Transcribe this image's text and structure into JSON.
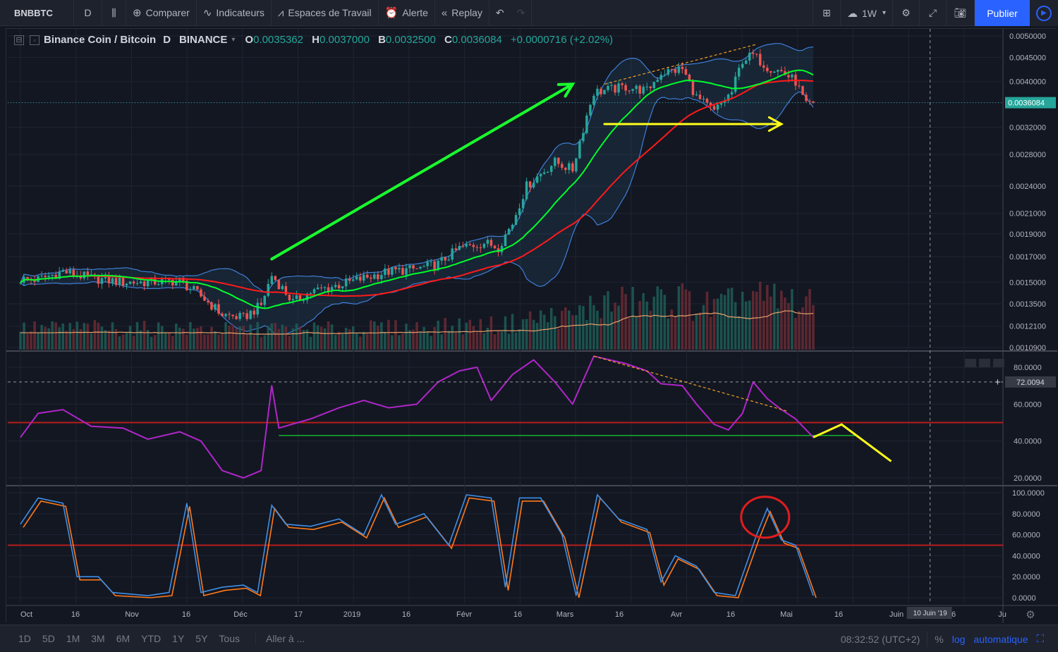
{
  "toolbar": {
    "symbol": "BNBBTC",
    "interval": "D",
    "compare": "Comparer",
    "indicators": "Indicateurs",
    "workspaces": "Espaces de Travail",
    "alert": "Alerte",
    "replay": "Replay",
    "layout_interval": "1W",
    "publish": "Publier"
  },
  "legend": {
    "symbol": "Binance Coin / Bitcoin",
    "interval": "D",
    "exchange": "BINANCE",
    "open_label": "O",
    "open": "0.0035362",
    "high_label": "H",
    "high": "0.0037000",
    "low_label": "B",
    "low": "0.0032500",
    "close_label": "C",
    "close": "0.0036084",
    "change": "+0.0000716 (+2.02%)"
  },
  "colors": {
    "background": "#131722",
    "up": "#26a69a",
    "down": "#ef5350",
    "sma_fast": "#00ff2a",
    "sma_slow": "#ff1a1a",
    "bollinger": "#3f7fd6",
    "rsi": "#b026c9",
    "stoch_k": "#3f8fe6",
    "stoch_d": "#ff7a1a",
    "drawing_green": "#19ff2e",
    "drawing_yellow": "#ffff1a",
    "accent": "#2962ff"
  },
  "price_axis": {
    "ticks": [
      "0.0050000",
      "0.0045000",
      "0.0040000",
      "0.0036084",
      "0.0032000",
      "0.0028000",
      "0.0024000",
      "0.0021000",
      "0.0019000",
      "0.0017000",
      "0.0015000",
      "0.0013500",
      "0.0012100",
      "0.0010900"
    ],
    "log_scale": true,
    "last_price": "0.0036084"
  },
  "rsi_axis": {
    "ticks": [
      "80.0000",
      "72.0094",
      "60.0000",
      "40.0000",
      "20.0000"
    ],
    "crosshair_value": "72.0094"
  },
  "stoch_axis": {
    "ticks": [
      "100.0000",
      "80.0000",
      "60.0000",
      "40.0000",
      "20.0000",
      "0.0000"
    ]
  },
  "time_axis": {
    "labels": [
      "Oct",
      "16",
      "Nov",
      "16",
      "Déc",
      "17",
      "2019",
      "16",
      "Févr",
      "16",
      "Mars",
      "16",
      "Avr",
      "16",
      "Mai",
      "16",
      "Juin",
      "16",
      "Ju"
    ],
    "crosshair_label": "10 Juin '19"
  },
  "chart_data": {
    "type": "candlestick",
    "title": "Binance Coin / Bitcoin",
    "interval": "D",
    "exchange": "BINANCE",
    "x_range": [
      "2018-09-26",
      "2019-05-08"
    ],
    "price_ylim": [
      0.00109,
      0.005
    ],
    "last_candle": {
      "open": 0.0035362,
      "high": 0.0037,
      "low": 0.00325,
      "close": 0.0036084
    },
    "price_path": [
      [
        "2018-10-01",
        0.00152
      ],
      [
        "2018-10-08",
        0.00158
      ],
      [
        "2018-10-16",
        0.00153
      ],
      [
        "2018-10-25",
        0.0015
      ],
      [
        "2018-11-01",
        0.0015
      ],
      [
        "2018-11-10",
        0.00151
      ],
      [
        "2018-11-16",
        0.0014
      ],
      [
        "2018-11-22",
        0.00128
      ],
      [
        "2018-11-28",
        0.00126
      ],
      [
        "2018-12-03",
        0.00134
      ],
      [
        "2018-12-06",
        0.00155
      ],
      [
        "2018-12-12",
        0.00136
      ],
      [
        "2018-12-17",
        0.00143
      ],
      [
        "2018-12-25",
        0.00148
      ],
      [
        "2019-01-01",
        0.00153
      ],
      [
        "2019-01-08",
        0.00158
      ],
      [
        "2019-01-16",
        0.0016
      ],
      [
        "2019-01-22",
        0.00164
      ],
      [
        "2019-01-28",
        0.00177
      ],
      [
        "2019-02-04",
        0.00182
      ],
      [
        "2019-02-08",
        0.00178
      ],
      [
        "2019-02-12",
        0.002
      ],
      [
        "2019-02-16",
        0.0024
      ],
      [
        "2019-02-20",
        0.00255
      ],
      [
        "2019-02-24",
        0.0027
      ],
      [
        "2019-03-01",
        0.0026
      ],
      [
        "2019-03-04",
        0.00318
      ],
      [
        "2019-03-07",
        0.0038
      ],
      [
        "2019-03-12",
        0.00385
      ],
      [
        "2019-03-16",
        0.0039
      ],
      [
        "2019-03-22",
        0.00382
      ],
      [
        "2019-03-26",
        0.00418
      ],
      [
        "2019-04-01",
        0.00425
      ],
      [
        "2019-04-05",
        0.0037
      ],
      [
        "2019-04-10",
        0.00345
      ],
      [
        "2019-04-15",
        0.0038
      ],
      [
        "2019-04-18",
        0.00445
      ],
      [
        "2019-04-21",
        0.00455
      ],
      [
        "2019-04-25",
        0.0043
      ],
      [
        "2019-04-29",
        0.0042
      ],
      [
        "2019-05-03",
        0.004
      ],
      [
        "2019-05-06",
        0.00355
      ],
      [
        "2019-05-08",
        0.00361
      ]
    ],
    "series": [
      {
        "name": "SMA fast",
        "color": "#00ff2a"
      },
      {
        "name": "SMA slow",
        "color": "#ff1a1a"
      },
      {
        "name": "Bollinger Bands",
        "color": "#3f7fd6"
      },
      {
        "name": "Volume",
        "color": "#26a69a"
      },
      {
        "name": "RSI",
        "color": "#b026c9",
        "levels": [
          50,
          43
        ],
        "ylim": [
          20,
          90
        ]
      },
      {
        "name": "Stochastic %K",
        "color": "#3f8fe6",
        "ylim": [
          0,
          100
        ],
        "level": 50
      },
      {
        "name": "Stochastic %D",
        "color": "#ff7a1a"
      }
    ],
    "rsi_path": [
      [
        "2018-09-26",
        42
      ],
      [
        "2018-10-01",
        55
      ],
      [
        "2018-10-08",
        57
      ],
      [
        "2018-10-16",
        48
      ],
      [
        "2018-10-25",
        47
      ],
      [
        "2018-11-01",
        41
      ],
      [
        "2018-11-10",
        45
      ],
      [
        "2018-11-16",
        40
      ],
      [
        "2018-11-22",
        24
      ],
      [
        "2018-11-28",
        20
      ],
      [
        "2018-12-03",
        24
      ],
      [
        "2018-12-06",
        70
      ],
      [
        "2018-12-08",
        47
      ],
      [
        "2018-12-17",
        52
      ],
      [
        "2018-12-25",
        58
      ],
      [
        "2019-01-01",
        62
      ],
      [
        "2019-01-08",
        58
      ],
      [
        "2019-01-16",
        60
      ],
      [
        "2019-01-22",
        72
      ],
      [
        "2019-01-28",
        78
      ],
      [
        "2019-02-02",
        80
      ],
      [
        "2019-02-06",
        62
      ],
      [
        "2019-02-12",
        76
      ],
      [
        "2019-02-18",
        84
      ],
      [
        "2019-02-24",
        72
      ],
      [
        "2019-03-01",
        60
      ],
      [
        "2019-03-07",
        86
      ],
      [
        "2019-03-16",
        82
      ],
      [
        "2019-03-22",
        78
      ],
      [
        "2019-03-26",
        71
      ],
      [
        "2019-04-01",
        70
      ],
      [
        "2019-04-05",
        60
      ],
      [
        "2019-04-10",
        49
      ],
      [
        "2019-04-14",
        46
      ],
      [
        "2019-04-18",
        55
      ],
      [
        "2019-04-21",
        72
      ],
      [
        "2019-04-25",
        63
      ],
      [
        "2019-04-29",
        57
      ],
      [
        "2019-05-03",
        52
      ],
      [
        "2019-05-08",
        42
      ]
    ],
    "stoch_path": [
      [
        "2018-09-26",
        70
      ],
      [
        "2018-10-01",
        95
      ],
      [
        "2018-10-08",
        90
      ],
      [
        "2018-10-12",
        20
      ],
      [
        "2018-10-18",
        20
      ],
      [
        "2018-10-22",
        5
      ],
      [
        "2018-11-01",
        2
      ],
      [
        "2018-11-07",
        5
      ],
      [
        "2018-11-12",
        90
      ],
      [
        "2018-11-16",
        5
      ],
      [
        "2018-11-22",
        10
      ],
      [
        "2018-11-28",
        12
      ],
      [
        "2018-12-02",
        5
      ],
      [
        "2018-12-06",
        88
      ],
      [
        "2018-12-10",
        70
      ],
      [
        "2018-12-17",
        68
      ],
      [
        "2018-12-25",
        75
      ],
      [
        "2019-01-01",
        60
      ],
      [
        "2019-01-06",
        98
      ],
      [
        "2019-01-10",
        70
      ],
      [
        "2019-01-18",
        80
      ],
      [
        "2019-01-25",
        50
      ],
      [
        "2019-01-30",
        98
      ],
      [
        "2019-02-06",
        95
      ],
      [
        "2019-02-10",
        10
      ],
      [
        "2019-02-14",
        95
      ],
      [
        "2019-02-20",
        95
      ],
      [
        "2019-02-26",
        60
      ],
      [
        "2019-03-02",
        2
      ],
      [
        "2019-03-08",
        98
      ],
      [
        "2019-03-14",
        75
      ],
      [
        "2019-03-22",
        65
      ],
      [
        "2019-03-26",
        15
      ],
      [
        "2019-03-30",
        40
      ],
      [
        "2019-04-05",
        30
      ],
      [
        "2019-04-10",
        5
      ],
      [
        "2019-04-16",
        2
      ],
      [
        "2019-04-22",
        60
      ],
      [
        "2019-04-25",
        85
      ],
      [
        "2019-04-29",
        55
      ],
      [
        "2019-05-03",
        50
      ],
      [
        "2019-05-08",
        2
      ]
    ],
    "annotations": [
      {
        "type": "arrow",
        "color": "green",
        "from": [
          "2018-12-06",
          0.00168
        ],
        "to": [
          "2019-03-01",
          0.00395
        ]
      },
      {
        "type": "arrow",
        "color": "yellow",
        "from": [
          "2019-03-10",
          0.00325
        ],
        "to": [
          "2019-04-29",
          0.00325
        ]
      },
      {
        "type": "dashed_trendline",
        "color": "orange",
        "pane": "price",
        "from": [
          "2019-03-10",
          0.00395
        ],
        "to": [
          "2019-04-22",
          0.0048
        ]
      },
      {
        "type": "dashed_trendline",
        "color": "orange",
        "pane": "rsi",
        "from": [
          "2019-03-07",
          86
        ],
        "to": [
          "2019-05-01",
          56
        ]
      },
      {
        "type": "zigzag",
        "color": "yellow",
        "pane": "rsi",
        "points": [
          [
            "2019-05-08",
            42
          ],
          [
            "2019-05-16",
            49
          ],
          [
            "2019-05-30",
            29
          ]
        ]
      },
      {
        "type": "circle",
        "color": "red",
        "pane": "stoch",
        "center": [
          "2019-04-25",
          80
        ]
      }
    ]
  },
  "bottom": {
    "ranges": [
      "1D",
      "5D",
      "1M",
      "3M",
      "6M",
      "YTD",
      "1Y",
      "5Y",
      "Tous"
    ],
    "goto": "Aller à ...",
    "time": "08:32:52 (UTC+2)",
    "pct": "%",
    "log": "log",
    "auto": "automatique"
  }
}
